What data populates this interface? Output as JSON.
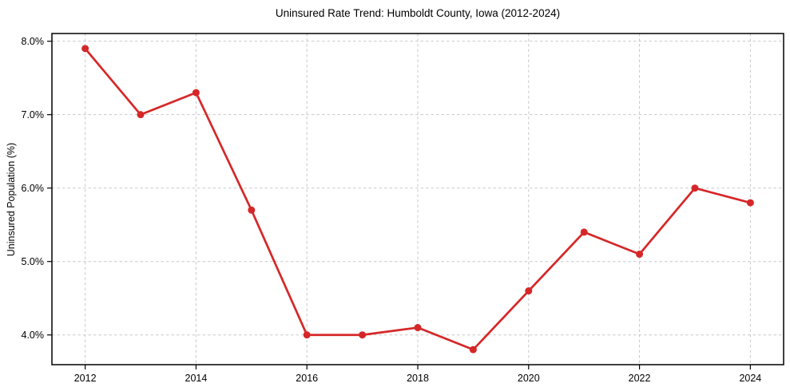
{
  "chart_data": {
    "type": "line",
    "title": "Uninsured Rate Trend: Humboldt County, Iowa (2012-2024)",
    "xlabel": "",
    "ylabel": "Uninsured Population (%)",
    "x": [
      2012,
      2013,
      2014,
      2015,
      2016,
      2017,
      2018,
      2019,
      2020,
      2021,
      2022,
      2023,
      2024
    ],
    "values": [
      7.9,
      7.0,
      7.3,
      5.7,
      4.0,
      4.0,
      4.1,
      3.8,
      4.6,
      5.4,
      5.1,
      6.0,
      5.8
    ],
    "xlim": [
      2011.4,
      2024.6
    ],
    "ylim": [
      3.595,
      8.105
    ],
    "xticks": {
      "values": [
        2012,
        2014,
        2016,
        2018,
        2020,
        2022,
        2024
      ],
      "labels": [
        "2012",
        "2014",
        "2016",
        "2018",
        "2020",
        "2022",
        "2024"
      ]
    },
    "yticks": {
      "values": [
        4.0,
        5.0,
        6.0,
        7.0,
        8.0
      ],
      "labels": [
        "4.0%",
        "5.0%",
        "6.0%",
        "7.0%",
        "8.0%"
      ]
    },
    "grid": true,
    "legend_position": "none",
    "line_color": "#d62728",
    "marker": "circle",
    "marker_color": "#d62728",
    "grid_color": "#c9c9c9",
    "background_color": "#ffffff"
  }
}
